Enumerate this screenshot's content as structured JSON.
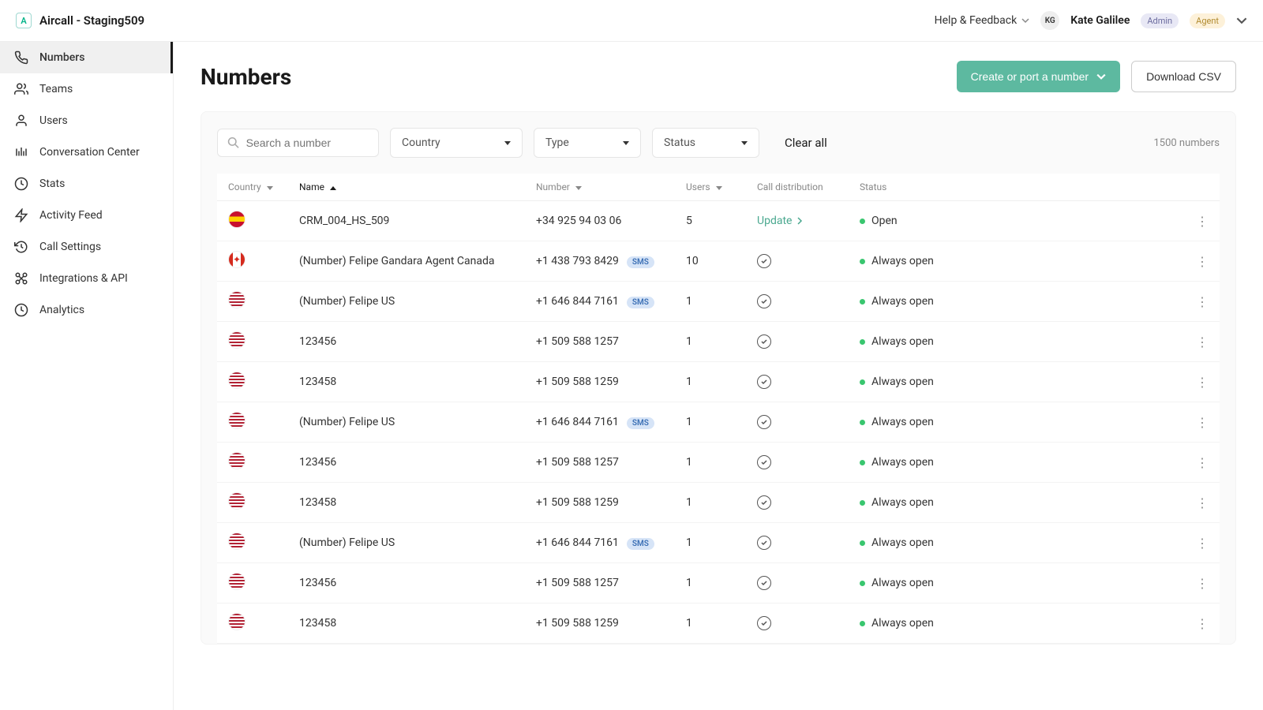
{
  "brand": {
    "logo_letter": "A",
    "name": "Aircall - Staging509"
  },
  "topbar": {
    "help_label": "Help & Feedback",
    "user_initials": "KG",
    "user_name": "Kate Galilee",
    "badge_admin": "Admin",
    "badge_agent": "Agent"
  },
  "sidebar": {
    "items": [
      {
        "label": "Numbers",
        "icon": "phone",
        "active": true
      },
      {
        "label": "Teams",
        "icon": "users"
      },
      {
        "label": "Users",
        "icon": "user"
      },
      {
        "label": "Conversation Center",
        "icon": "bars"
      },
      {
        "label": "Stats",
        "icon": "clock"
      },
      {
        "label": "Activity Feed",
        "icon": "bolt"
      },
      {
        "label": "Call Settings",
        "icon": "history"
      },
      {
        "label": "Integrations & API",
        "icon": "integrations"
      },
      {
        "label": "Analytics",
        "icon": "clock"
      }
    ]
  },
  "page": {
    "title": "Numbers",
    "create_btn": "Create or port a number",
    "download_btn": "Download CSV"
  },
  "filters": {
    "search_placeholder": "Search a number",
    "country": "Country",
    "type": "Type",
    "status": "Status",
    "clear": "Clear all",
    "count": "1500 numbers"
  },
  "table": {
    "columns": {
      "country": "Country",
      "name": "Name",
      "number": "Number",
      "users": "Users",
      "call_distribution": "Call distribution",
      "status": "Status"
    },
    "sms_label": "SMS",
    "update_label": "Update",
    "rows": [
      {
        "flag": "es",
        "name": "CRM_004_HS_509",
        "number": "+34 925 94 03 06",
        "sms": false,
        "users": "5",
        "dist": "update",
        "status": "Open"
      },
      {
        "flag": "ca",
        "name": "(Number) Felipe Gandara Agent Canada",
        "number": "+1 438 793 8429",
        "sms": true,
        "users": "10",
        "dist": "check",
        "status": "Always open"
      },
      {
        "flag": "us",
        "name": "(Number) Felipe US",
        "number": "+1 646 844 7161",
        "sms": true,
        "users": "1",
        "dist": "check",
        "status": "Always open"
      },
      {
        "flag": "us",
        "name": "123456",
        "number": "+1 509 588 1257",
        "sms": false,
        "users": "1",
        "dist": "check",
        "status": "Always open"
      },
      {
        "flag": "us",
        "name": "123458",
        "number": "+1 509 588 1259",
        "sms": false,
        "users": "1",
        "dist": "check",
        "status": "Always open"
      },
      {
        "flag": "us",
        "name": "(Number) Felipe US",
        "number": "+1 646 844 7161",
        "sms": true,
        "users": "1",
        "dist": "check",
        "status": "Always open"
      },
      {
        "flag": "us",
        "name": "123456",
        "number": "+1 509 588 1257",
        "sms": false,
        "users": "1",
        "dist": "check",
        "status": "Always open"
      },
      {
        "flag": "us",
        "name": "123458",
        "number": "+1 509 588 1259",
        "sms": false,
        "users": "1",
        "dist": "check",
        "status": "Always open"
      },
      {
        "flag": "us",
        "name": "(Number) Felipe US",
        "number": "+1 646 844 7161",
        "sms": true,
        "users": "1",
        "dist": "check",
        "status": "Always open"
      },
      {
        "flag": "us",
        "name": "123456",
        "number": "+1 509 588 1257",
        "sms": false,
        "users": "1",
        "dist": "check",
        "status": "Always open"
      },
      {
        "flag": "us",
        "name": "123458",
        "number": "+1 509 588 1259",
        "sms": false,
        "users": "1",
        "dist": "check",
        "status": "Always open"
      }
    ]
  },
  "colors": {
    "primary_green": "#5db9a0",
    "status_green": "#39c66f",
    "sms_bg": "#d6e4f7",
    "sms_fg": "#3b6fb5",
    "admin_bg": "#e8e8f5",
    "agent_bg": "#fdf1d9"
  }
}
